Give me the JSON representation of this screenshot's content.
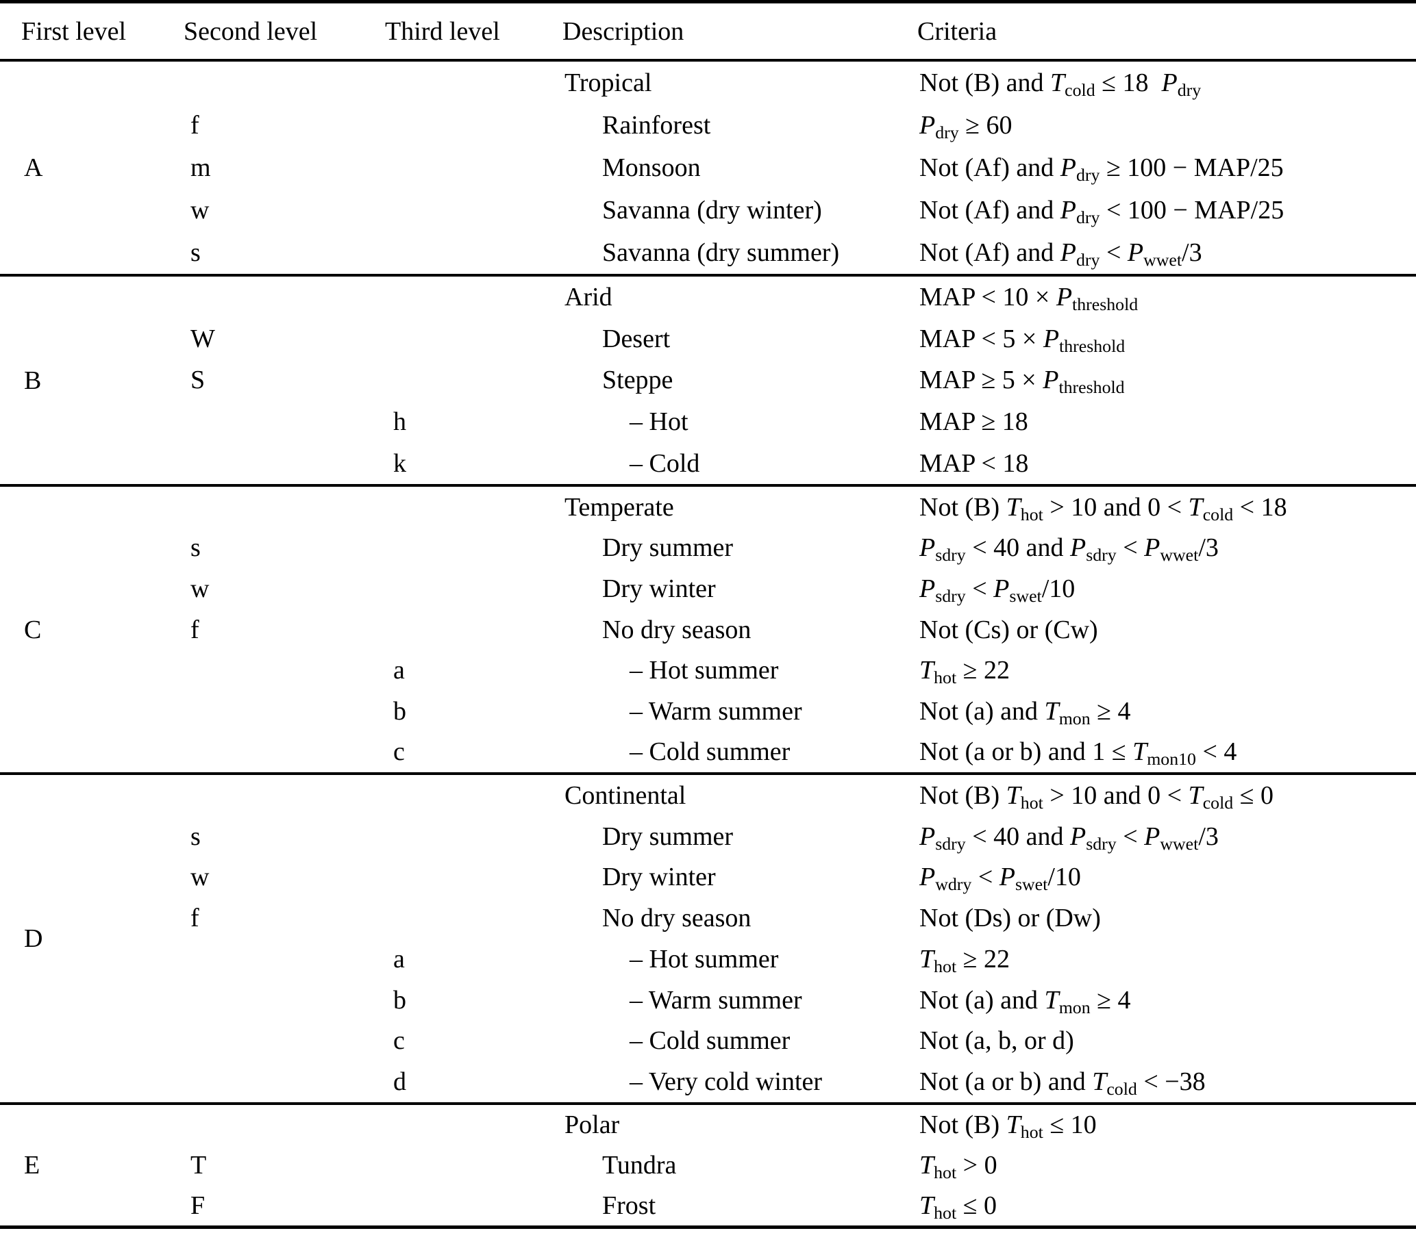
{
  "table": {
    "headers": [
      "First level",
      "Second level",
      "Third level",
      "Description",
      "Criteria"
    ],
    "sections": [
      {
        "first_level": "A",
        "rows": [
          {
            "second": "",
            "third": "",
            "description": "Tropical",
            "depth": 0,
            "criteria": "Not (B) and *T*~cold~ ≤ 18  *P*~dry~"
          },
          {
            "second": "f",
            "third": "",
            "description": "Rainforest",
            "depth": 1,
            "criteria": "*P*~dry~ ≥ 60"
          },
          {
            "second": "m",
            "third": "",
            "description": "Monsoon",
            "depth": 1,
            "criteria": "Not (Af) and *P*~dry~ ≥ 100 − MAP/25"
          },
          {
            "second": "w",
            "third": "",
            "description": "Savanna (dry winter)",
            "depth": 1,
            "criteria": "Not (Af) and *P*~dry~ < 100 − MAP/25"
          },
          {
            "second": "s",
            "third": "",
            "description": "Savanna (dry summer)",
            "depth": 1,
            "criteria": "Not (Af) and *P*~dry~ < *P*~wwet~/3"
          }
        ]
      },
      {
        "first_level": "B",
        "rows": [
          {
            "second": "",
            "third": "",
            "description": "Arid",
            "depth": 0,
            "criteria": "MAP < 10 × *P*~threshold~"
          },
          {
            "second": "W",
            "third": "",
            "description": "Desert",
            "depth": 1,
            "criteria": "MAP < 5 × *P*~threshold~"
          },
          {
            "second": "S",
            "third": "",
            "description": "Steppe",
            "depth": 1,
            "criteria": "MAP ≥ 5 × *P*~threshold~"
          },
          {
            "second": "",
            "third": "h",
            "description": "– Hot",
            "depth": 2,
            "criteria": "MAP ≥ 18"
          },
          {
            "second": "",
            "third": "k",
            "description": "– Cold",
            "depth": 2,
            "criteria": "MAP < 18"
          }
        ]
      },
      {
        "first_level": "C",
        "rows": [
          {
            "second": "",
            "third": "",
            "description": "Temperate",
            "depth": 0,
            "criteria": "Not (B) *T*~hot~ > 10 and 0 < *T*~cold~ < 18"
          },
          {
            "second": "s",
            "third": "",
            "description": "Dry summer",
            "depth": 1,
            "criteria": "*P*~sdry~ < 40 and *P*~sdry~ < *P*~wwet~/3"
          },
          {
            "second": "w",
            "third": "",
            "description": "Dry winter",
            "depth": 1,
            "criteria": "*P*~sdry~ < *P*~swet~/10"
          },
          {
            "second": "f",
            "third": "",
            "description": "No dry season",
            "depth": 1,
            "criteria": "Not (Cs) or (Cw)"
          },
          {
            "second": "",
            "third": "a",
            "description": "– Hot summer",
            "depth": 2,
            "criteria": "*T*~hot~ ≥ 22"
          },
          {
            "second": "",
            "third": "b",
            "description": "– Warm summer",
            "depth": 2,
            "criteria": "Not (a) and *T*~mon~ ≥ 4"
          },
          {
            "second": "",
            "third": "c",
            "description": "– Cold summer",
            "depth": 2,
            "criteria": "Not (a or b) and 1 ≤ *T*~mon10~ < 4"
          }
        ]
      },
      {
        "first_level": "D",
        "rows": [
          {
            "second": "",
            "third": "",
            "description": "Continental",
            "depth": 0,
            "criteria": "Not (B) *T*~hot~ > 10 and 0 < *T*~cold~ ≤ 0"
          },
          {
            "second": "s",
            "third": "",
            "description": "Dry summer",
            "depth": 1,
            "criteria": "*P*~sdry~ < 40 and *P*~sdry~ < *P*~wwet~/3"
          },
          {
            "second": "w",
            "third": "",
            "description": "Dry winter",
            "depth": 1,
            "criteria": "*P*~wdry~ < *P*~swet~/10"
          },
          {
            "second": "f",
            "third": "",
            "description": "No dry season",
            "depth": 1,
            "criteria": "Not (Ds) or (Dw)"
          },
          {
            "second": "",
            "third": "a",
            "description": "– Hot summer",
            "depth": 2,
            "criteria": "*T*~hot~ ≥ 22"
          },
          {
            "second": "",
            "third": "b",
            "description": "– Warm summer",
            "depth": 2,
            "criteria": "Not (a) and *T*~mon~ ≥ 4"
          },
          {
            "second": "",
            "third": "c",
            "description": "– Cold summer",
            "depth": 2,
            "criteria": "Not (a, b, or d)"
          },
          {
            "second": "",
            "third": "d",
            "description": "– Very cold winter",
            "depth": 2,
            "criteria": "Not (a or b) and *T*~cold~ < −38"
          }
        ]
      },
      {
        "first_level": "E",
        "rows": [
          {
            "second": "",
            "third": "",
            "description": "Polar",
            "depth": 0,
            "criteria": "Not (B) *T*~hot~ ≤ 10"
          },
          {
            "second": "T",
            "third": "",
            "description": "Tundra",
            "depth": 1,
            "criteria": "*T*~hot~ > 0"
          },
          {
            "second": "F",
            "third": "",
            "description": "Frost",
            "depth": 1,
            "criteria": "*T*~hot~ ≤ 0"
          }
        ]
      }
    ]
  }
}
